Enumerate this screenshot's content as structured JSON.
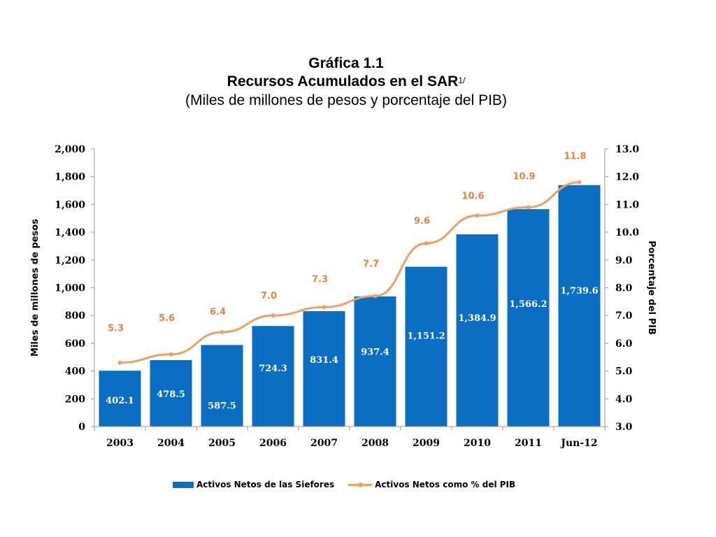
{
  "title": {
    "line1": "Gráfica 1.1",
    "line2": "Recursos Acumulados en el SAR",
    "line2_sup": "1/",
    "line3": "(Miles de millones de pesos y porcentaje del PIB)"
  },
  "colors": {
    "bar": "#0a6fc2",
    "line": "#f0a060",
    "line_label": "#e8843a",
    "axis": "#9a9a9a"
  },
  "chart_data": {
    "type": "bar",
    "categories": [
      "2003",
      "2004",
      "2005",
      "2006",
      "2007",
      "2008",
      "2009",
      "2010",
      "2011",
      "Jun-12"
    ],
    "series": [
      {
        "name": "Activos Netos de las Siefores",
        "type": "bar",
        "axis": "left",
        "values": [
          402.1,
          478.5,
          587.5,
          724.3,
          831.4,
          937.4,
          1151.2,
          1384.9,
          1566.2,
          1739.6
        ],
        "labels": [
          "402.1",
          "478.5",
          "587.5",
          "724.3",
          "831.4",
          "937.4",
          "1,151.2",
          "1,384.9",
          "1,566.2",
          "1,739.6"
        ]
      },
      {
        "name": "Activos Netos como % del PIB",
        "type": "line",
        "axis": "right",
        "values": [
          5.3,
          5.6,
          6.4,
          7.0,
          7.3,
          7.7,
          9.6,
          10.6,
          10.9,
          11.8
        ],
        "labels": [
          "5.3",
          "5.6",
          "6.4",
          "7.0",
          "7.3",
          "7.7",
          "9.6",
          "10.6",
          "10.9",
          "11.8"
        ]
      }
    ],
    "ylabel": "Miles de millones de pesos",
    "y2label": "Porcentaje del PIB",
    "ylim": [
      0,
      2000
    ],
    "y2lim": [
      3.0,
      13.0
    ],
    "yticks": [
      "0",
      "200",
      "400",
      "600",
      "800",
      "1,000",
      "1,200",
      "1,400",
      "1,600",
      "1,800",
      "2,000"
    ],
    "y2ticks": [
      "3.0",
      "4.0",
      "5.0",
      "6.0",
      "7.0",
      "8.0",
      "9.0",
      "10.0",
      "11.0",
      "12.0",
      "13.0"
    ],
    "legend_position": "bottom",
    "grid": false
  },
  "legend": {
    "bar_label": "Activos Netos de las Siefores",
    "line_label": "Activos Netos como % del PIB"
  }
}
